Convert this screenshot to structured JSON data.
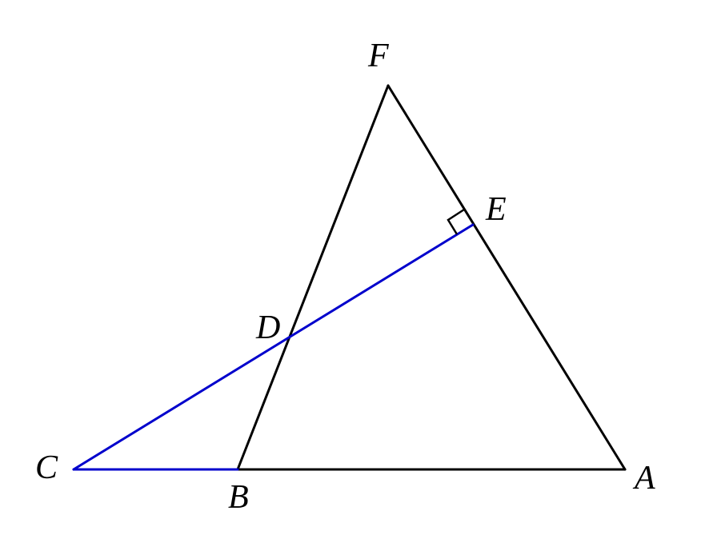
{
  "colors": {
    "black": "#000000",
    "blue": "#0000cc",
    "background": "#ffffff"
  },
  "points": {
    "A": {
      "label": "A"
    },
    "B": {
      "label": "B"
    },
    "C": {
      "label": "C"
    },
    "D": {
      "label": "D"
    },
    "E": {
      "label": "E"
    },
    "F": {
      "label": "F"
    }
  },
  "segments": [
    {
      "name": "segment-ba",
      "from": "B",
      "to": "A",
      "color": "black"
    },
    {
      "name": "segment-af",
      "from": "A",
      "to": "F",
      "color": "black"
    },
    {
      "name": "segment-fb",
      "from": "F",
      "to": "B",
      "color": "black"
    },
    {
      "name": "segment-cb",
      "from": "C",
      "to": "B",
      "color": "blue"
    },
    {
      "name": "segment-ce",
      "from": "C",
      "to": "E",
      "color": "blue"
    }
  ],
  "right_angle_at": "E"
}
